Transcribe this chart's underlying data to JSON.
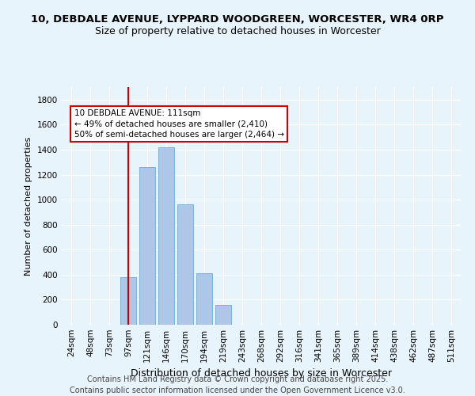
{
  "title_line1": "10, DEBDALE AVENUE, LYPPARD WOODGREEN, WORCESTER, WR4 0RP",
  "title_line2": "Size of property relative to detached houses in Worcester",
  "xlabel": "Distribution of detached houses by size in Worcester",
  "ylabel": "Number of detached properties",
  "categories": [
    "24sqm",
    "48sqm",
    "73sqm",
    "97sqm",
    "121sqm",
    "146sqm",
    "170sqm",
    "194sqm",
    "219sqm",
    "243sqm",
    "268sqm",
    "292sqm",
    "316sqm",
    "341sqm",
    "365sqm",
    "389sqm",
    "414sqm",
    "438sqm",
    "462sqm",
    "487sqm",
    "511sqm"
  ],
  "values": [
    0,
    0,
    0,
    380,
    1260,
    1420,
    960,
    410,
    160,
    0,
    0,
    0,
    0,
    0,
    0,
    0,
    0,
    0,
    0,
    0,
    0
  ],
  "bar_color": "#aec6e8",
  "bar_edgecolor": "#7bafd4",
  "vline_x_index": 3.0,
  "annotation_text": "10 DEBDALE AVENUE: 111sqm\n← 49% of detached houses are smaller (2,410)\n50% of semi-detached houses are larger (2,464) →",
  "annotation_box_edgecolor": "#cc0000",
  "vline_color": "#cc0000",
  "ylim": [
    0,
    1900
  ],
  "yticks": [
    0,
    200,
    400,
    600,
    800,
    1000,
    1200,
    1400,
    1600,
    1800
  ],
  "footer_line1": "Contains HM Land Registry data © Crown copyright and database right 2025.",
  "footer_line2": "Contains public sector information licensed under the Open Government Licence v3.0.",
  "bg_color": "#e8f4fb",
  "plot_bg_color": "#e8f4fb",
  "grid_color": "#ffffff",
  "title_fontsize": 9.5,
  "subtitle_fontsize": 9,
  "footer_fontsize": 7,
  "ann_fontsize": 7.5,
  "ylabel_fontsize": 8,
  "xlabel_fontsize": 9,
  "tick_fontsize": 7.5
}
